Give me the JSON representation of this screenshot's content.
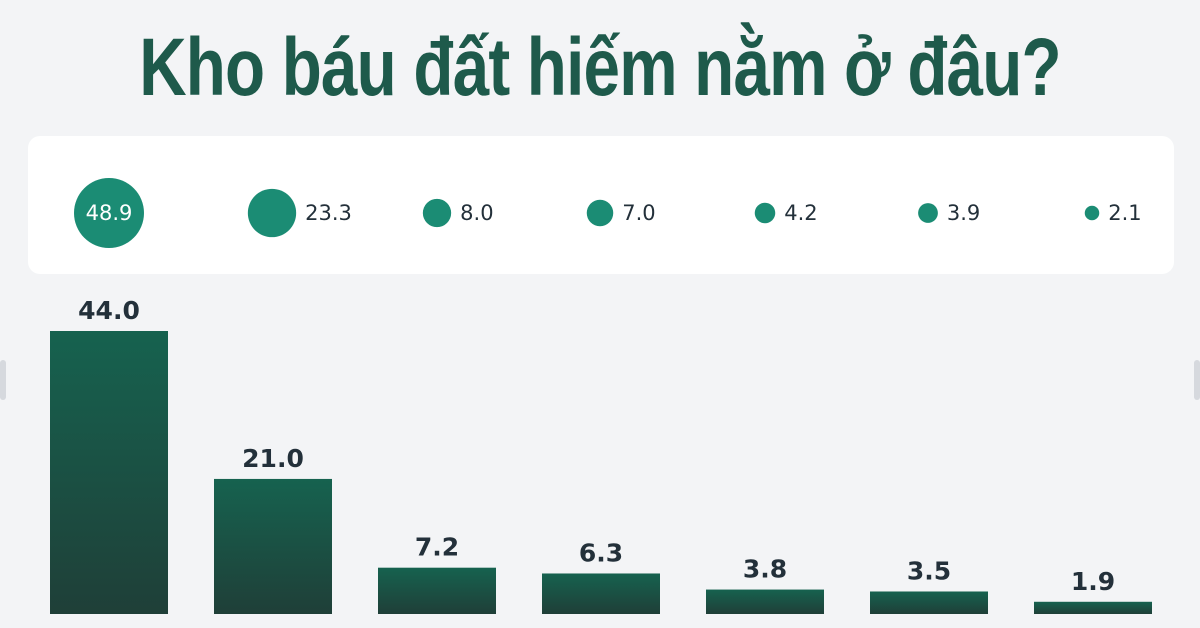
{
  "header": {
    "title": "Kho báu đất hiếm nằm ở đâu?"
  },
  "colors": {
    "title": "#1e5a4b",
    "bubble": "#1b8c74",
    "bar_top": "#16624f",
    "bar_bottom": "#1f3f38",
    "label": "#23303a"
  },
  "chart_data": [
    {
      "type": "scatter",
      "subtype": "bubble",
      "labels": [
        "48.9",
        "23.3",
        "8.0",
        "7.0",
        "4.2",
        "3.9",
        "2.1"
      ],
      "values": [
        48.9,
        23.3,
        8.0,
        7.0,
        4.2,
        3.9,
        2.1
      ]
    },
    {
      "type": "bar",
      "labels": [
        "44.0",
        "21.0",
        "7.2",
        "6.3",
        "3.8",
        "3.5",
        "1.9"
      ],
      "values": [
        44.0,
        21.0,
        7.2,
        6.3,
        3.8,
        3.5,
        1.9
      ],
      "ylim": [
        0,
        44.0
      ]
    }
  ]
}
